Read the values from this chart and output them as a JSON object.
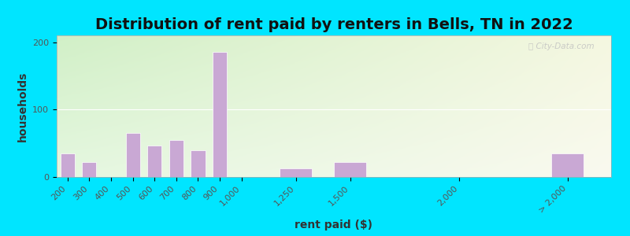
{
  "title": "Distribution of rent paid by renters in Bells, TN in 2022",
  "xlabel": "rent paid ($)",
  "ylabel": "households",
  "x_positions": [
    200,
    300,
    400,
    500,
    600,
    700,
    800,
    900,
    1000,
    1250,
    1500,
    2000,
    2500
  ],
  "x_labels": [
    "200",
    "300",
    "400",
    "500",
    "600",
    "700",
    "800",
    "900",
    "1,000",
    "1,250",
    "1,500",
    "2,000",
    "> 2,000"
  ],
  "values": [
    35,
    22,
    0,
    65,
    47,
    55,
    40,
    185,
    0,
    13,
    22,
    0,
    35
  ],
  "bar_widths": [
    80,
    80,
    80,
    80,
    80,
    80,
    80,
    80,
    80,
    180,
    180,
    180,
    180
  ],
  "bar_color": "#c9a8d4",
  "bar_edge_color": "#ffffff",
  "bg_outer": "#00e5ff",
  "ylim": [
    0,
    210
  ],
  "yticks": [
    0,
    100,
    200
  ],
  "title_fontsize": 14,
  "axis_label_fontsize": 10,
  "tick_fontsize": 8,
  "xlim": [
    150,
    2700
  ]
}
